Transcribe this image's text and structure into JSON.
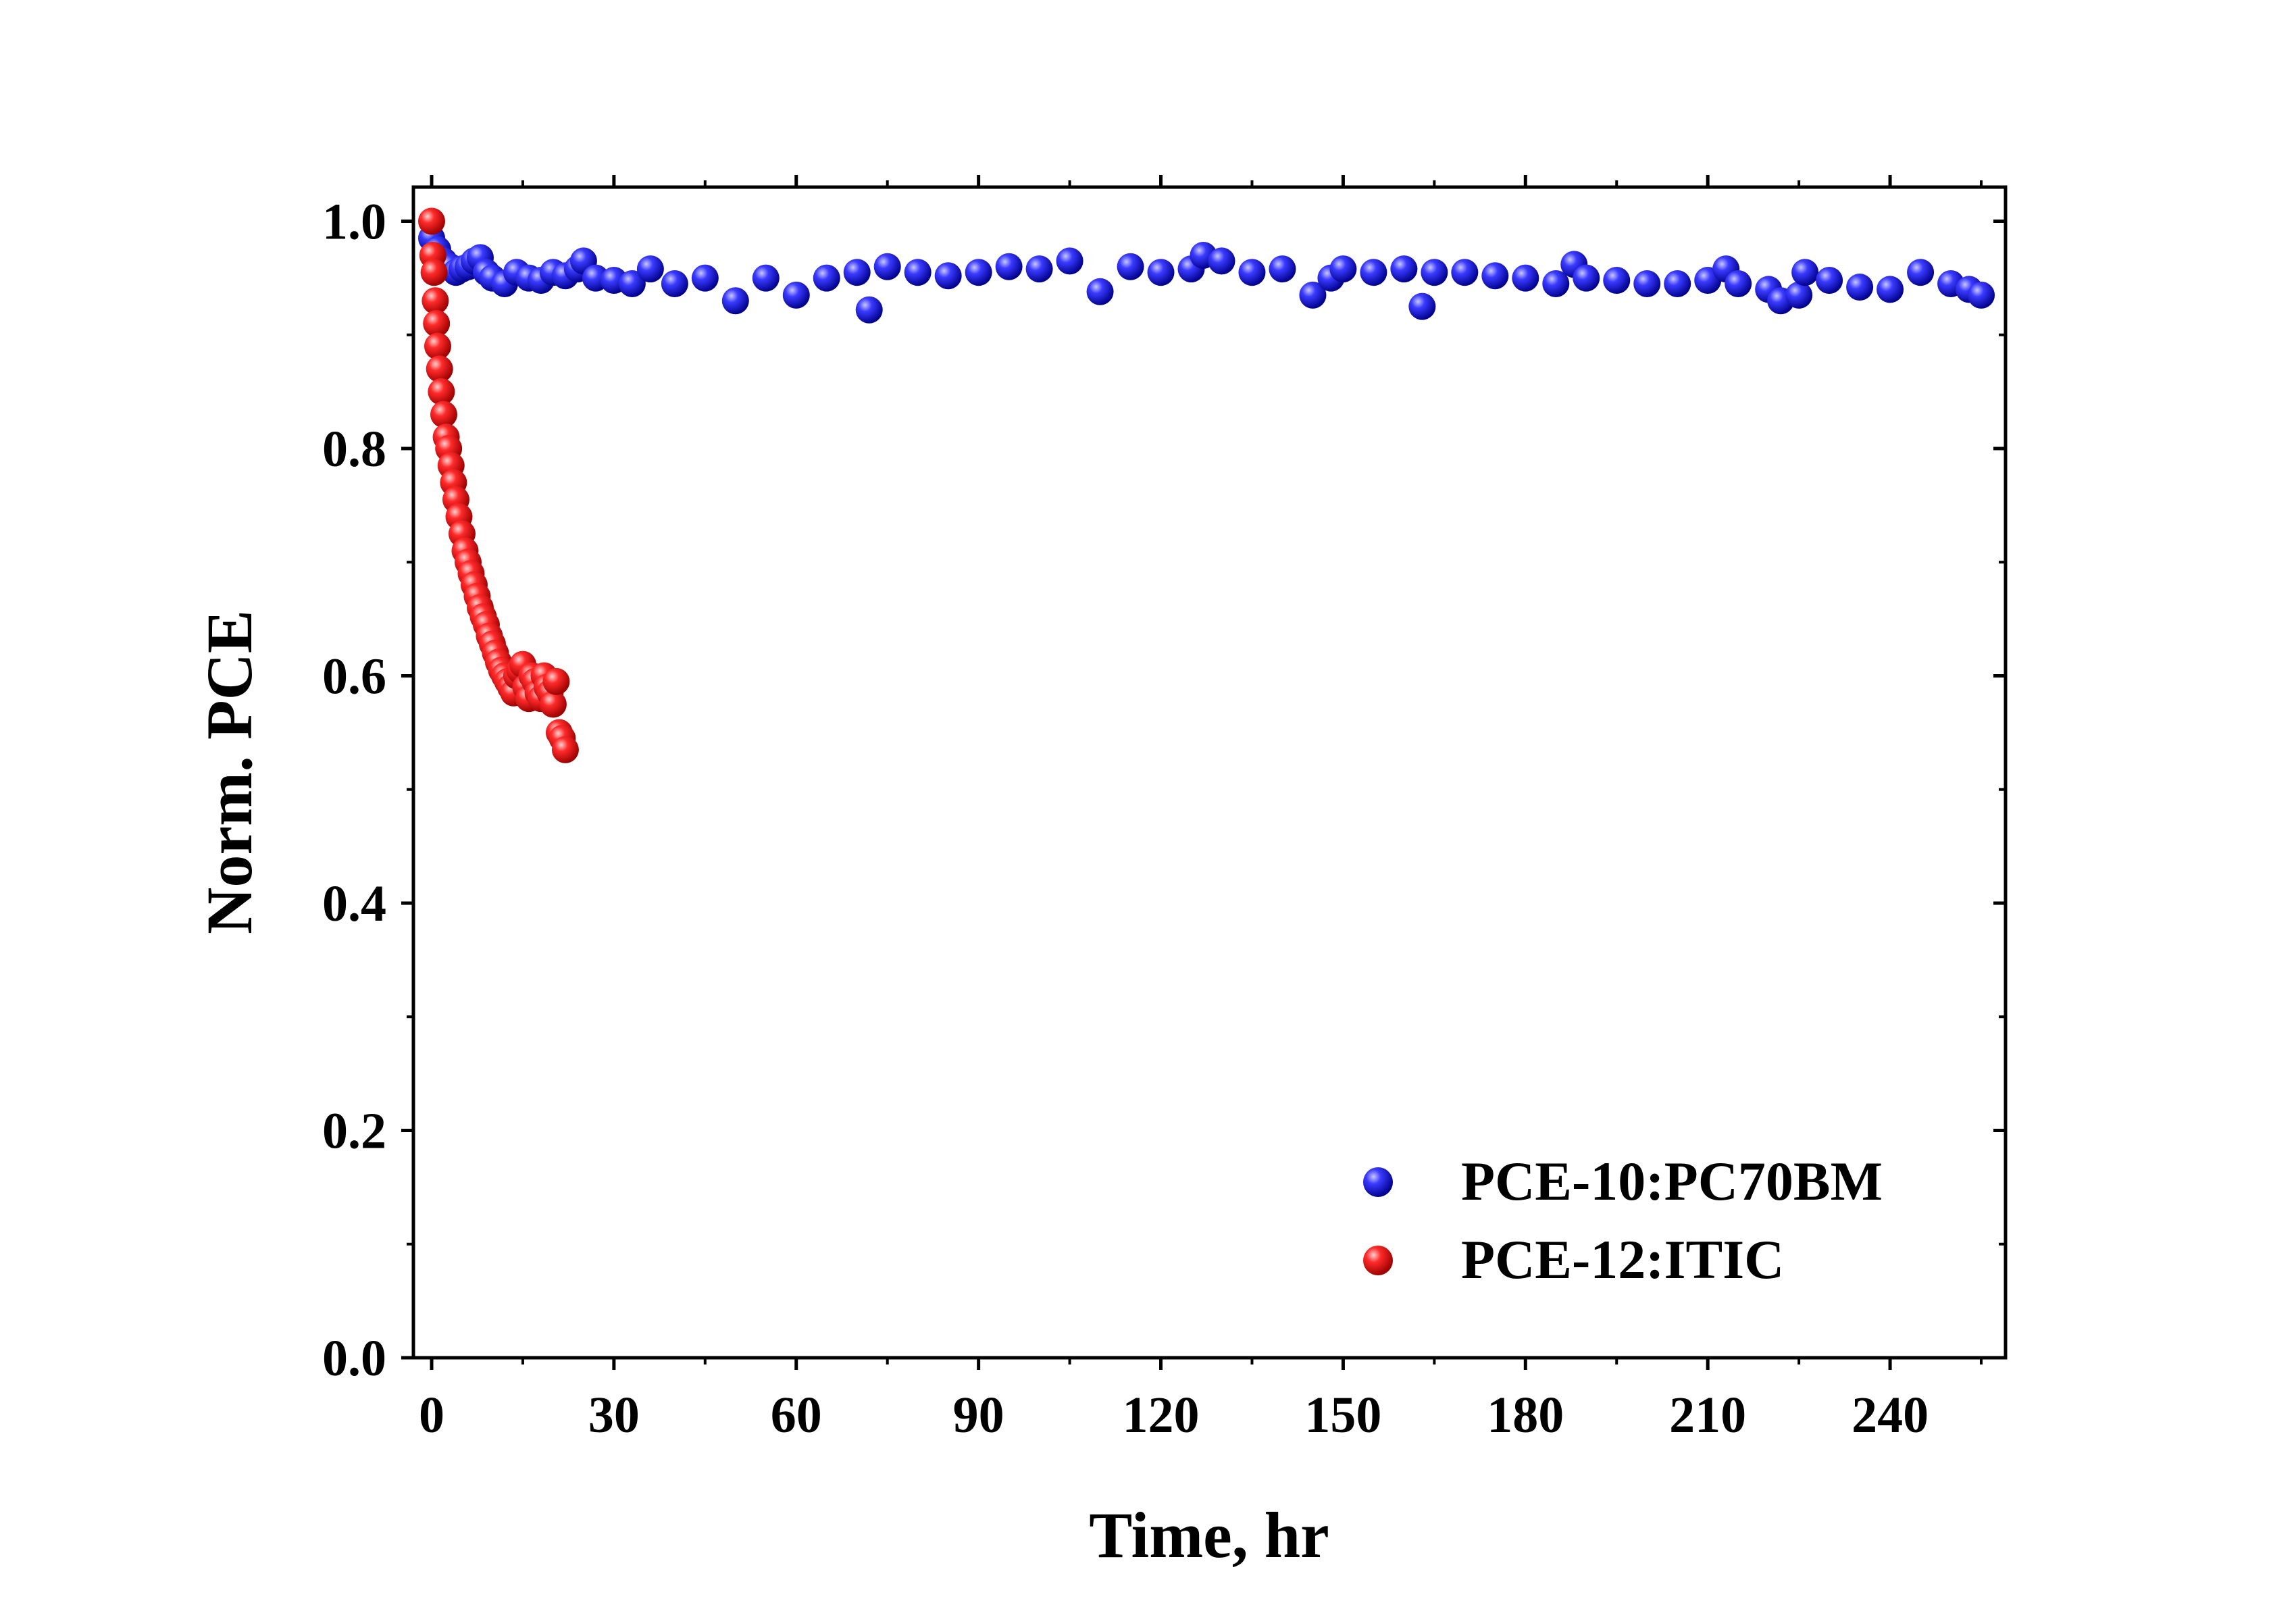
{
  "chart_data": {
    "type": "scatter",
    "xlabel": "Time, hr",
    "ylabel": "Norm. PCE",
    "xlim": [
      -3,
      259
    ],
    "ylim": [
      0.0,
      1.03
    ],
    "x_ticks": [
      0,
      30,
      60,
      90,
      120,
      150,
      180,
      210,
      240
    ],
    "y_ticks": [
      0.0,
      0.2,
      0.4,
      0.6,
      0.8,
      1.0
    ],
    "x_tick_labels": [
      "0",
      "30",
      "60",
      "90",
      "120",
      "150",
      "180",
      "210",
      "240"
    ],
    "y_tick_labels": [
      "0.0",
      "0.2",
      "0.4",
      "0.6",
      "0.8",
      "1.0"
    ],
    "legend_position": "bottom-right",
    "series": [
      {
        "name": "PCE-10:PC70BM",
        "color": "#1010e0",
        "x": [
          0,
          1,
          2,
          3,
          4,
          5,
          6,
          7,
          8,
          9,
          10,
          12,
          14,
          16,
          18,
          20,
          22,
          24,
          25,
          27,
          30,
          33,
          36,
          40,
          45,
          50,
          55,
          60,
          65,
          70,
          72,
          75,
          80,
          85,
          90,
          95,
          100,
          105,
          110,
          115,
          120,
          125,
          127,
          130,
          135,
          140,
          145,
          148,
          150,
          155,
          160,
          163,
          165,
          170,
          175,
          180,
          185,
          188,
          190,
          195,
          200,
          205,
          210,
          213,
          215,
          220,
          222,
          225,
          226,
          230,
          235,
          240,
          245,
          250,
          253,
          255
        ],
        "y": [
          0.985,
          0.975,
          0.965,
          0.96,
          0.955,
          0.958,
          0.96,
          0.965,
          0.968,
          0.955,
          0.95,
          0.945,
          0.955,
          0.95,
          0.948,
          0.955,
          0.952,
          0.958,
          0.965,
          0.95,
          0.948,
          0.945,
          0.958,
          0.945,
          0.95,
          0.93,
          0.95,
          0.935,
          0.95,
          0.955,
          0.922,
          0.96,
          0.955,
          0.952,
          0.955,
          0.96,
          0.958,
          0.965,
          0.938,
          0.96,
          0.955,
          0.958,
          0.97,
          0.965,
          0.955,
          0.958,
          0.935,
          0.95,
          0.958,
          0.955,
          0.958,
          0.925,
          0.955,
          0.955,
          0.952,
          0.95,
          0.945,
          0.962,
          0.95,
          0.948,
          0.945,
          0.945,
          0.948,
          0.958,
          0.945,
          0.94,
          0.93,
          0.935,
          0.955,
          0.948,
          0.942,
          0.94,
          0.955,
          0.945,
          0.94,
          0.935
        ]
      },
      {
        "name": "PCE-12:ITIC",
        "color": "#ee1111",
        "x": [
          0,
          0.2,
          0.4,
          0.6,
          0.8,
          1.0,
          1.3,
          1.6,
          2.0,
          2.4,
          2.8,
          3.2,
          3.6,
          4.0,
          4.5,
          5.0,
          5.5,
          6.0,
          6.5,
          7.0,
          7.5,
          8.0,
          8.5,
          9.0,
          9.5,
          10.0,
          10.5,
          11.0,
          11.5,
          12.0,
          12.5,
          13.0,
          13.5,
          14.0,
          14.5,
          15.0,
          15.5,
          16.0,
          16.5,
          17.0,
          17.5,
          18.0,
          18.5,
          19.0,
          19.5,
          20.0,
          20.5,
          21.0,
          21.5,
          22.0
        ],
        "y": [
          1.0,
          0.97,
          0.955,
          0.93,
          0.91,
          0.89,
          0.87,
          0.85,
          0.83,
          0.81,
          0.8,
          0.785,
          0.77,
          0.755,
          0.74,
          0.725,
          0.71,
          0.7,
          0.69,
          0.68,
          0.67,
          0.66,
          0.652,
          0.645,
          0.635,
          0.628,
          0.62,
          0.612,
          0.605,
          0.6,
          0.595,
          0.59,
          0.585,
          0.6,
          0.605,
          0.61,
          0.59,
          0.58,
          0.6,
          0.595,
          0.585,
          0.58,
          0.6,
          0.59,
          0.585,
          0.575,
          0.595,
          0.55,
          0.545,
          0.535
        ]
      }
    ]
  }
}
